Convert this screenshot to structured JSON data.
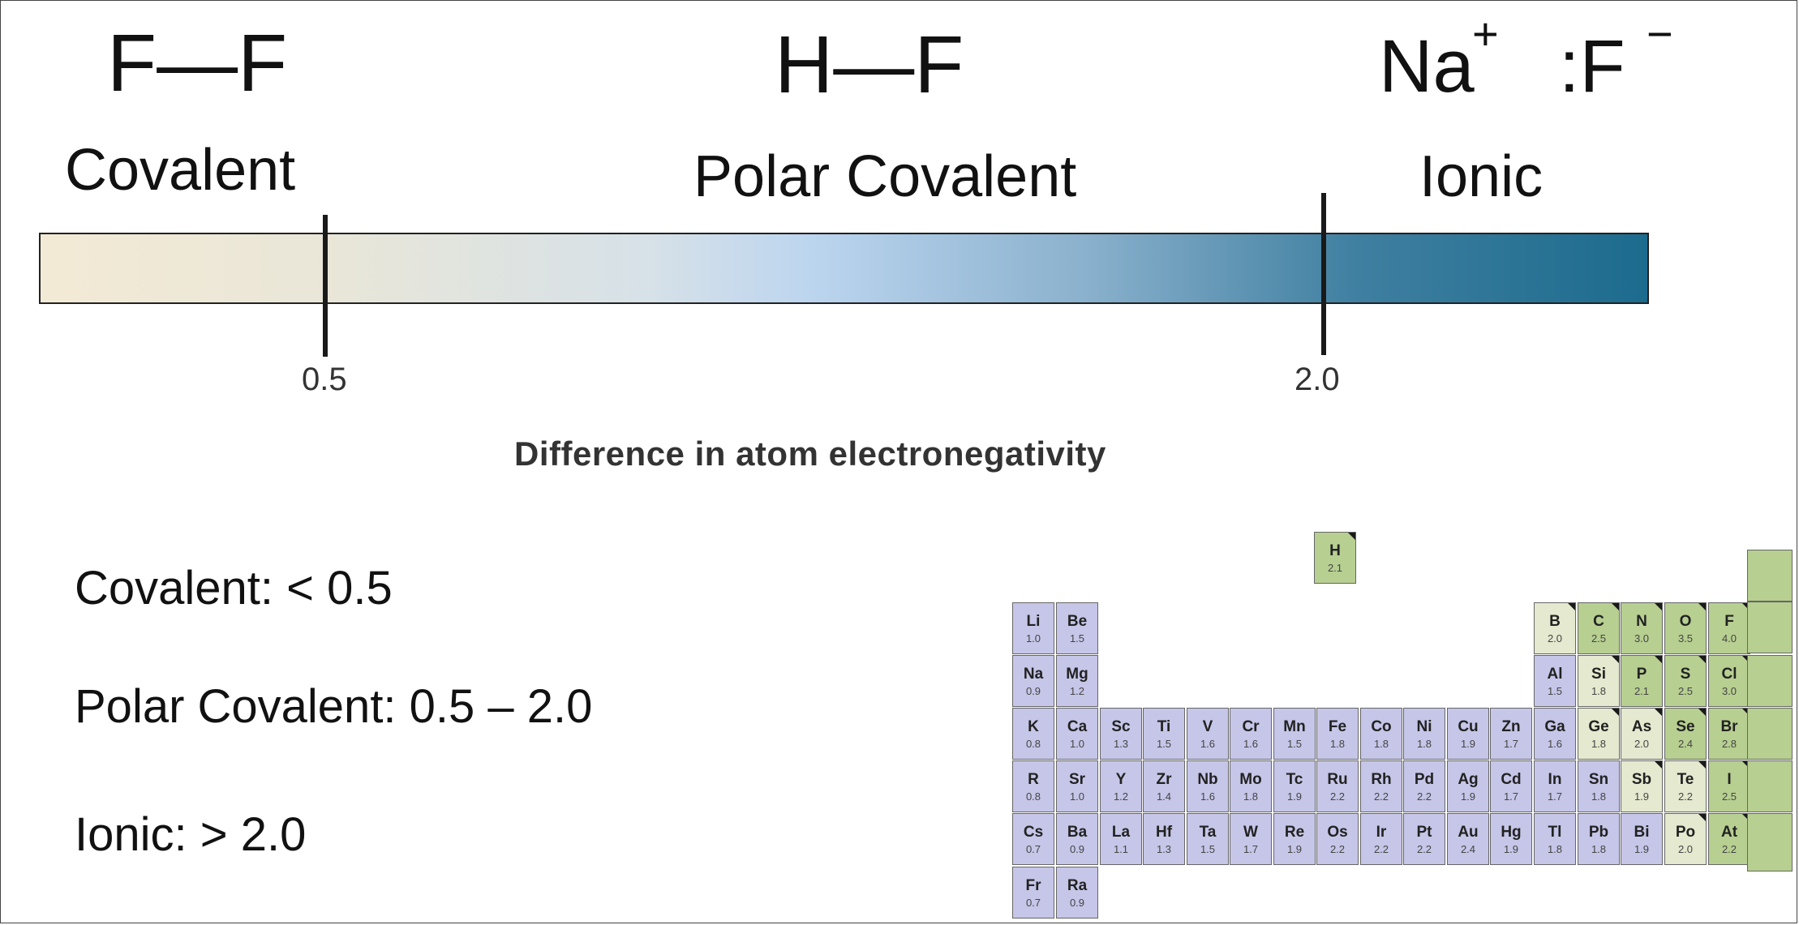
{
  "header": {
    "ff": "F—F",
    "hf": "H—F",
    "na": "Na",
    "na_charge": "+",
    "f_ion": ":F",
    "f_charge": "−"
  },
  "scale": {
    "covalent": "Covalent",
    "polar_covalent": "Polar Covalent",
    "ionic": "Ionic",
    "tick_low": "0.5",
    "tick_high": "2.0",
    "axis_title": "Difference in atom electronegativity",
    "gradient_start": "#f3ead5",
    "gradient_end": "#1c6b8e"
  },
  "rules": {
    "covalent": "Covalent:  < 0.5",
    "polar": "Polar Covalent:  0.5 – 2.0",
    "ionic": "Ionic:  > 2.0"
  },
  "periodic_table": {
    "colors": {
      "metal": "#c5c6e8",
      "nonmetal": "#b7cf91",
      "metalloid": "#e4e9cf"
    },
    "elements": [
      {
        "s": "H",
        "v": "2.1",
        "c": "green"
      },
      {
        "s": "Li",
        "v": "1.0",
        "c": "purple"
      },
      {
        "s": "Be",
        "v": "1.5",
        "c": "purple"
      },
      {
        "s": "B",
        "v": "2.0",
        "c": "cream"
      },
      {
        "s": "C",
        "v": "2.5",
        "c": "green"
      },
      {
        "s": "N",
        "v": "3.0",
        "c": "green"
      },
      {
        "s": "O",
        "v": "3.5",
        "c": "green"
      },
      {
        "s": "F",
        "v": "4.0",
        "c": "green"
      },
      {
        "s": "Na",
        "v": "0.9",
        "c": "purple"
      },
      {
        "s": "Mg",
        "v": "1.2",
        "c": "purple"
      },
      {
        "s": "Al",
        "v": "1.5",
        "c": "purple"
      },
      {
        "s": "Si",
        "v": "1.8",
        "c": "cream"
      },
      {
        "s": "P",
        "v": "2.1",
        "c": "green"
      },
      {
        "s": "S",
        "v": "2.5",
        "c": "green"
      },
      {
        "s": "Cl",
        "v": "3.0",
        "c": "green"
      },
      {
        "s": "K",
        "v": "0.8",
        "c": "purple"
      },
      {
        "s": "Ca",
        "v": "1.0",
        "c": "purple"
      },
      {
        "s": "Sc",
        "v": "1.3",
        "c": "purple"
      },
      {
        "s": "Ti",
        "v": "1.5",
        "c": "purple"
      },
      {
        "s": "V",
        "v": "1.6",
        "c": "purple"
      },
      {
        "s": "Cr",
        "v": "1.6",
        "c": "purple"
      },
      {
        "s": "Mn",
        "v": "1.5",
        "c": "purple"
      },
      {
        "s": "Fe",
        "v": "1.8",
        "c": "purple"
      },
      {
        "s": "Co",
        "v": "1.8",
        "c": "purple"
      },
      {
        "s": "Ni",
        "v": "1.8",
        "c": "purple"
      },
      {
        "s": "Cu",
        "v": "1.9",
        "c": "purple"
      },
      {
        "s": "Zn",
        "v": "1.7",
        "c": "purple"
      },
      {
        "s": "Ga",
        "v": "1.6",
        "c": "purple"
      },
      {
        "s": "Ge",
        "v": "1.8",
        "c": "cream"
      },
      {
        "s": "As",
        "v": "2.0",
        "c": "cream"
      },
      {
        "s": "Se",
        "v": "2.4",
        "c": "green"
      },
      {
        "s": "Br",
        "v": "2.8",
        "c": "green"
      },
      {
        "s": "R",
        "v": "0.8",
        "c": "purple"
      },
      {
        "s": "Sr",
        "v": "1.0",
        "c": "purple"
      },
      {
        "s": "Y",
        "v": "1.2",
        "c": "purple"
      },
      {
        "s": "Zr",
        "v": "1.4",
        "c": "purple"
      },
      {
        "s": "Nb",
        "v": "1.6",
        "c": "purple"
      },
      {
        "s": "Mo",
        "v": "1.8",
        "c": "purple"
      },
      {
        "s": "Tc",
        "v": "1.9",
        "c": "purple"
      },
      {
        "s": "Ru",
        "v": "2.2",
        "c": "purple"
      },
      {
        "s": "Rh",
        "v": "2.2",
        "c": "purple"
      },
      {
        "s": "Pd",
        "v": "2.2",
        "c": "purple"
      },
      {
        "s": "Ag",
        "v": "1.9",
        "c": "purple"
      },
      {
        "s": "Cd",
        "v": "1.7",
        "c": "purple"
      },
      {
        "s": "In",
        "v": "1.7",
        "c": "purple"
      },
      {
        "s": "Sn",
        "v": "1.8",
        "c": "purple"
      },
      {
        "s": "Sb",
        "v": "1.9",
        "c": "cream"
      },
      {
        "s": "Te",
        "v": "2.2",
        "c": "cream"
      },
      {
        "s": "I",
        "v": "2.5",
        "c": "green"
      },
      {
        "s": "Cs",
        "v": "0.7",
        "c": "purple"
      },
      {
        "s": "Ba",
        "v": "0.9",
        "c": "purple"
      },
      {
        "s": "La",
        "v": "1.1",
        "c": "purple"
      },
      {
        "s": "Hf",
        "v": "1.3",
        "c": "purple"
      },
      {
        "s": "Ta",
        "v": "1.5",
        "c": "purple"
      },
      {
        "s": "W",
        "v": "1.7",
        "c": "purple"
      },
      {
        "s": "Re",
        "v": "1.9",
        "c": "purple"
      },
      {
        "s": "Os",
        "v": "2.2",
        "c": "purple"
      },
      {
        "s": "Ir",
        "v": "2.2",
        "c": "purple"
      },
      {
        "s": "Pt",
        "v": "2.2",
        "c": "purple"
      },
      {
        "s": "Au",
        "v": "2.4",
        "c": "purple"
      },
      {
        "s": "Hg",
        "v": "1.9",
        "c": "purple"
      },
      {
        "s": "Tl",
        "v": "1.8",
        "c": "purple"
      },
      {
        "s": "Pb",
        "v": "1.8",
        "c": "purple"
      },
      {
        "s": "Bi",
        "v": "1.9",
        "c": "purple"
      },
      {
        "s": "Po",
        "v": "2.0",
        "c": "cream"
      },
      {
        "s": "At",
        "v": "2.2",
        "c": "green"
      },
      {
        "s": "Fr",
        "v": "0.7",
        "c": "purple"
      },
      {
        "s": "Ra",
        "v": "0.9",
        "c": "purple"
      }
    ]
  }
}
